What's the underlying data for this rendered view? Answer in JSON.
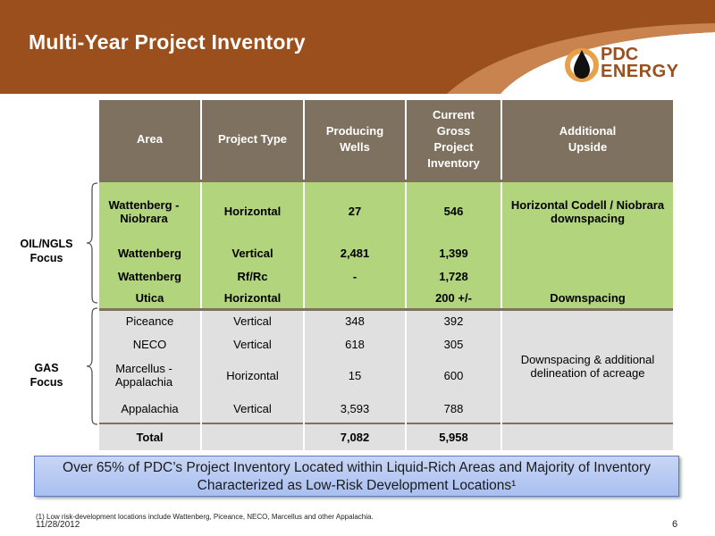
{
  "slide": {
    "title": "Multi-Year Project Inventory",
    "logo_line1": "PDC",
    "logo_line2": "ENERGY",
    "colors": {
      "header": "#9a4f1c",
      "table_header": "#7f715f",
      "oil_rows": "#b2d47c",
      "gas_rows": "#e0e0e0",
      "callout": "#b4c8f2"
    }
  },
  "table": {
    "headers": [
      "Area",
      "Project Type",
      "Producing Wells",
      "Current Gross Project Inventory",
      "Additional Upside"
    ],
    "oil_group_label": "OIL/NGLS Focus",
    "gas_group_label": "GAS Focus",
    "oil_rows": [
      {
        "area": "Wattenberg - Niobrara",
        "type": "Horizontal",
        "wells": "27",
        "inventory": "546",
        "upside": "Horizontal Codell / Niobrara downspacing"
      },
      {
        "area": "Wattenberg",
        "type": "Vertical",
        "wells": "2,481",
        "inventory": "1,399",
        "upside": ""
      },
      {
        "area": "Wattenberg",
        "type": "Rf/Rc",
        "wells": "-",
        "inventory": "1,728",
        "upside": ""
      },
      {
        "area": "Utica",
        "type": "Horizontal",
        "wells": "",
        "inventory": "200 +/-",
        "upside": "Downspacing"
      }
    ],
    "gas_rows": [
      {
        "area": "Piceance",
        "type": "Vertical",
        "wells": "348",
        "inventory": "392"
      },
      {
        "area": "NECO",
        "type": "Vertical",
        "wells": "618",
        "inventory": "305"
      },
      {
        "area": "Marcellus - Appalachia",
        "type": "Horizontal",
        "wells": "15",
        "inventory": "600"
      },
      {
        "area": "Appalachia",
        "type": "Vertical",
        "wells": "3,593",
        "inventory": "788"
      }
    ],
    "gas_upside": "Downspacing & additional delineation of acreage",
    "total": {
      "label": "Total",
      "type": "",
      "wells": "7,082",
      "inventory": "5,958",
      "upside": ""
    }
  },
  "callout": "Over 65% of PDC’s Project Inventory Located within Liquid-Rich Areas and Majority of Inventory Characterized as Low-Risk Development Locations¹",
  "footnote": "(1) Low risk-development locations include Wattenberg, Piceance, NECO, Marcellus and other Appalachia.",
  "date": "11/28/2012",
  "page_number": "6"
}
